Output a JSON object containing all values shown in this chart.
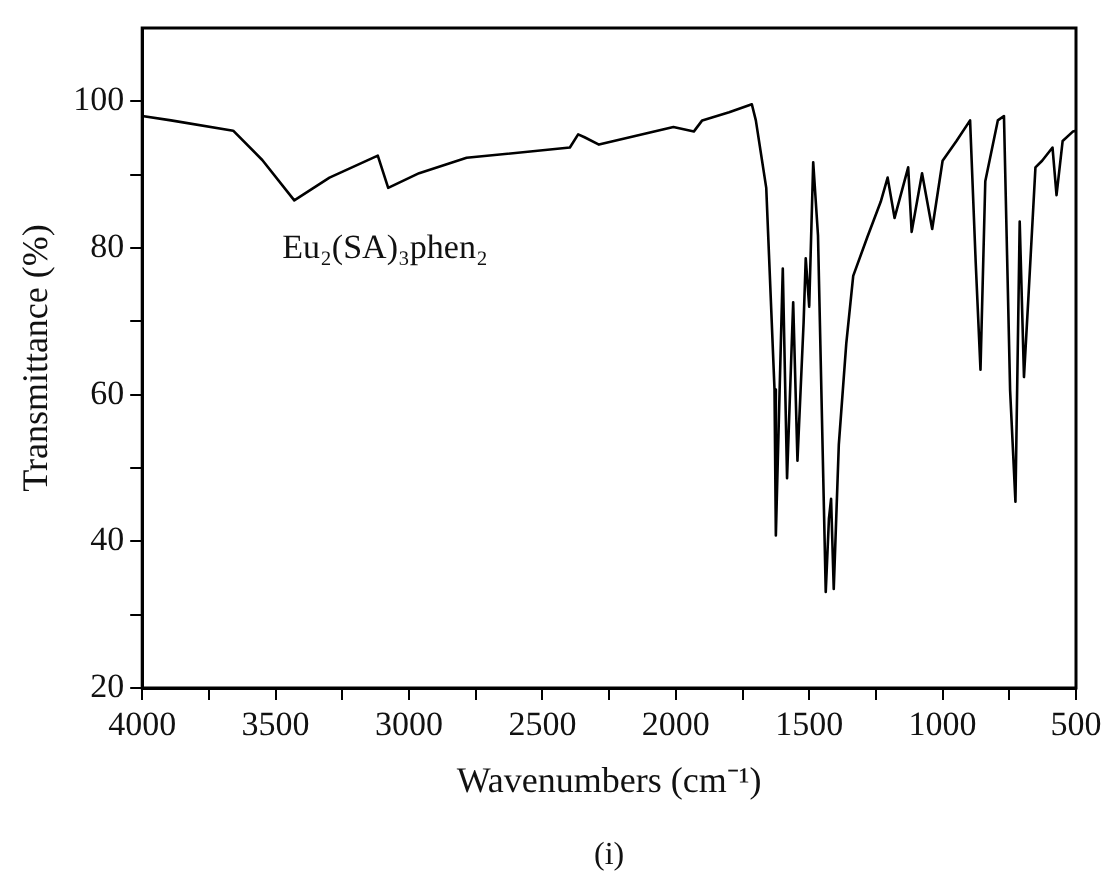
{
  "chart_data": {
    "type": "line",
    "xlabel": "Wavenumbers (cm⁻¹)",
    "ylabel": "Transmittance (%)",
    "annotations": [
      "Eu₂(SA)₃phen₂",
      "(i)"
    ],
    "xlim": [
      4000,
      500
    ],
    "ylim": [
      20,
      110
    ],
    "xticks": [
      4000,
      {
        "value": 3750,
        "label": null
      },
      3500,
      {
        "value": 3250,
        "label": null
      },
      3000,
      {
        "value": 2750,
        "label": null
      },
      2500,
      {
        "value": 2250,
        "label": null
      },
      2000,
      {
        "value": 1750,
        "label": null
      },
      1500,
      {
        "value": 1250,
        "label": null
      },
      1000,
      {
        "value": 750,
        "label": null
      },
      500
    ],
    "yticks": [
      20,
      {
        "value": 30,
        "label": null
      },
      40,
      {
        "value": 50,
        "label": null
      },
      60,
      {
        "value": 70,
        "label": null
      },
      80,
      {
        "value": 90,
        "label": null
      },
      100
    ],
    "grid": false,
    "legend": false,
    "marker": "none",
    "line_style": "solid",
    "series": [
      {
        "color": "#000000",
        "x": [
          4000,
          3892,
          3659,
          3550,
          3430,
          3298,
          3117,
          3078,
          2962,
          2784,
          2397,
          2366,
          2342,
          2288,
          2009,
          1932,
          1901,
          1800,
          1715,
          1700,
          1661,
          1630,
          1625,
          1599,
          1583,
          1560,
          1544,
          1521,
          1513,
          1500,
          1485,
          1467,
          1438,
          1426,
          1418,
          1408,
          1389,
          1361,
          1335,
          1283,
          1232,
          1206,
          1180,
          1129,
          1116,
          1077,
          1039,
          1000,
          948,
          897,
          876,
          858,
          840,
          793,
          770,
          747,
          727,
          711,
          695,
          678,
          652,
          627,
          588,
          573,
          550,
          511,
          500
        ],
        "values": [
          98,
          97.4,
          96,
          92,
          86.5,
          89.6,
          92.6,
          88.2,
          90.2,
          92.3,
          93.7,
          95.5,
          95.1,
          94.1,
          96.5,
          95.9,
          97.4,
          98.5,
          99.6,
          97.4,
          88.2,
          60.7,
          40.8,
          77.2,
          48.6,
          72.6,
          51,
          69.8,
          78.6,
          72,
          91.7,
          81.7,
          33.1,
          43.1,
          45.8,
          33.5,
          53.2,
          67,
          76.2,
          81.4,
          86.3,
          89.6,
          84.1,
          91,
          82.2,
          90.2,
          82.6,
          91.9,
          94.6,
          97.4,
          78.1,
          63.4,
          89.1,
          97.4,
          98,
          60.6,
          45.4,
          83.6,
          62.4,
          73.5,
          91,
          91.9,
          93.7,
          87.2,
          94.6,
          95.9,
          96
        ]
      }
    ]
  }
}
